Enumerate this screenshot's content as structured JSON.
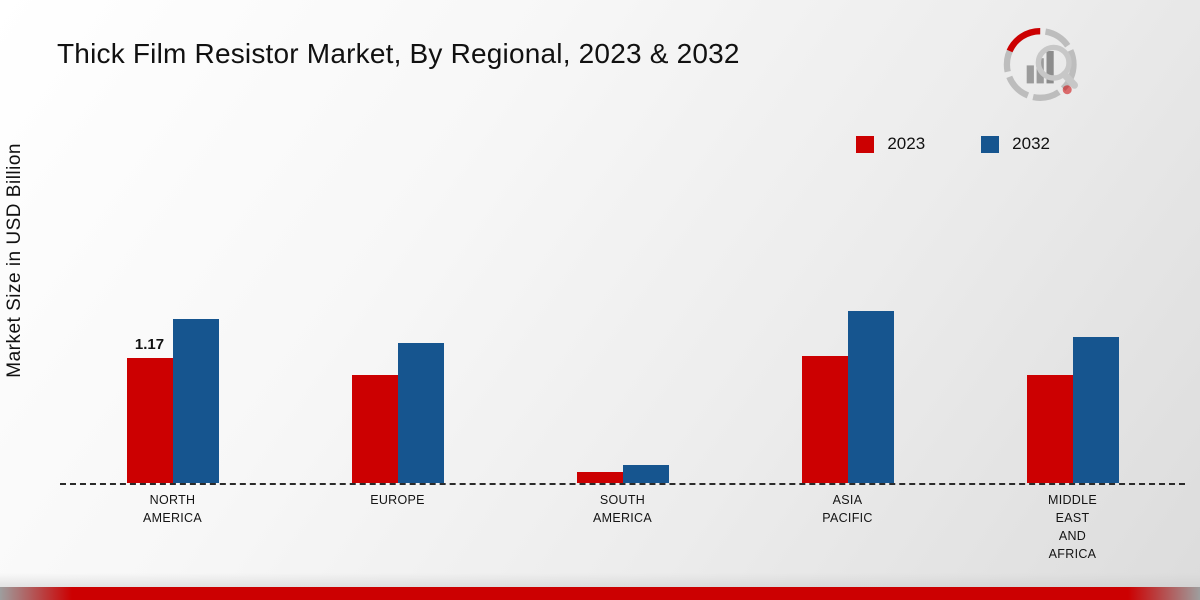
{
  "title": "Thick Film Resistor Market, By Regional, 2023 & 2032",
  "ylabel": "Market Size in USD Billion",
  "legend": [
    {
      "label": "2023",
      "color": "#cc0001"
    },
    {
      "label": "2032",
      "color": "#16558f"
    }
  ],
  "chart_data": {
    "type": "bar",
    "title": "Thick Film Resistor Market, By Regional, 2023 & 2032",
    "xlabel": "",
    "ylabel": "Market Size in USD Billion",
    "categories": [
      "NORTH AMERICA",
      "EUROPE",
      "SOUTH AMERICA",
      "ASIA PACIFIC",
      "MIDDLE EAST AND AFRICA"
    ],
    "series": [
      {
        "name": "2023",
        "color": "#cc0001",
        "values": [
          1.17,
          1.01,
          0.1,
          1.19,
          1.01
        ]
      },
      {
        "name": "2032",
        "color": "#16558f",
        "values": [
          1.53,
          1.31,
          0.17,
          1.61,
          1.36
        ]
      }
    ],
    "annotation": {
      "text": "1.17",
      "category_index": 0,
      "series_index": 0
    },
    "ylim": [
      0,
      1.8
    ],
    "grid": false,
    "legend_position": "top-right",
    "baseline_style": "dashed"
  }
}
